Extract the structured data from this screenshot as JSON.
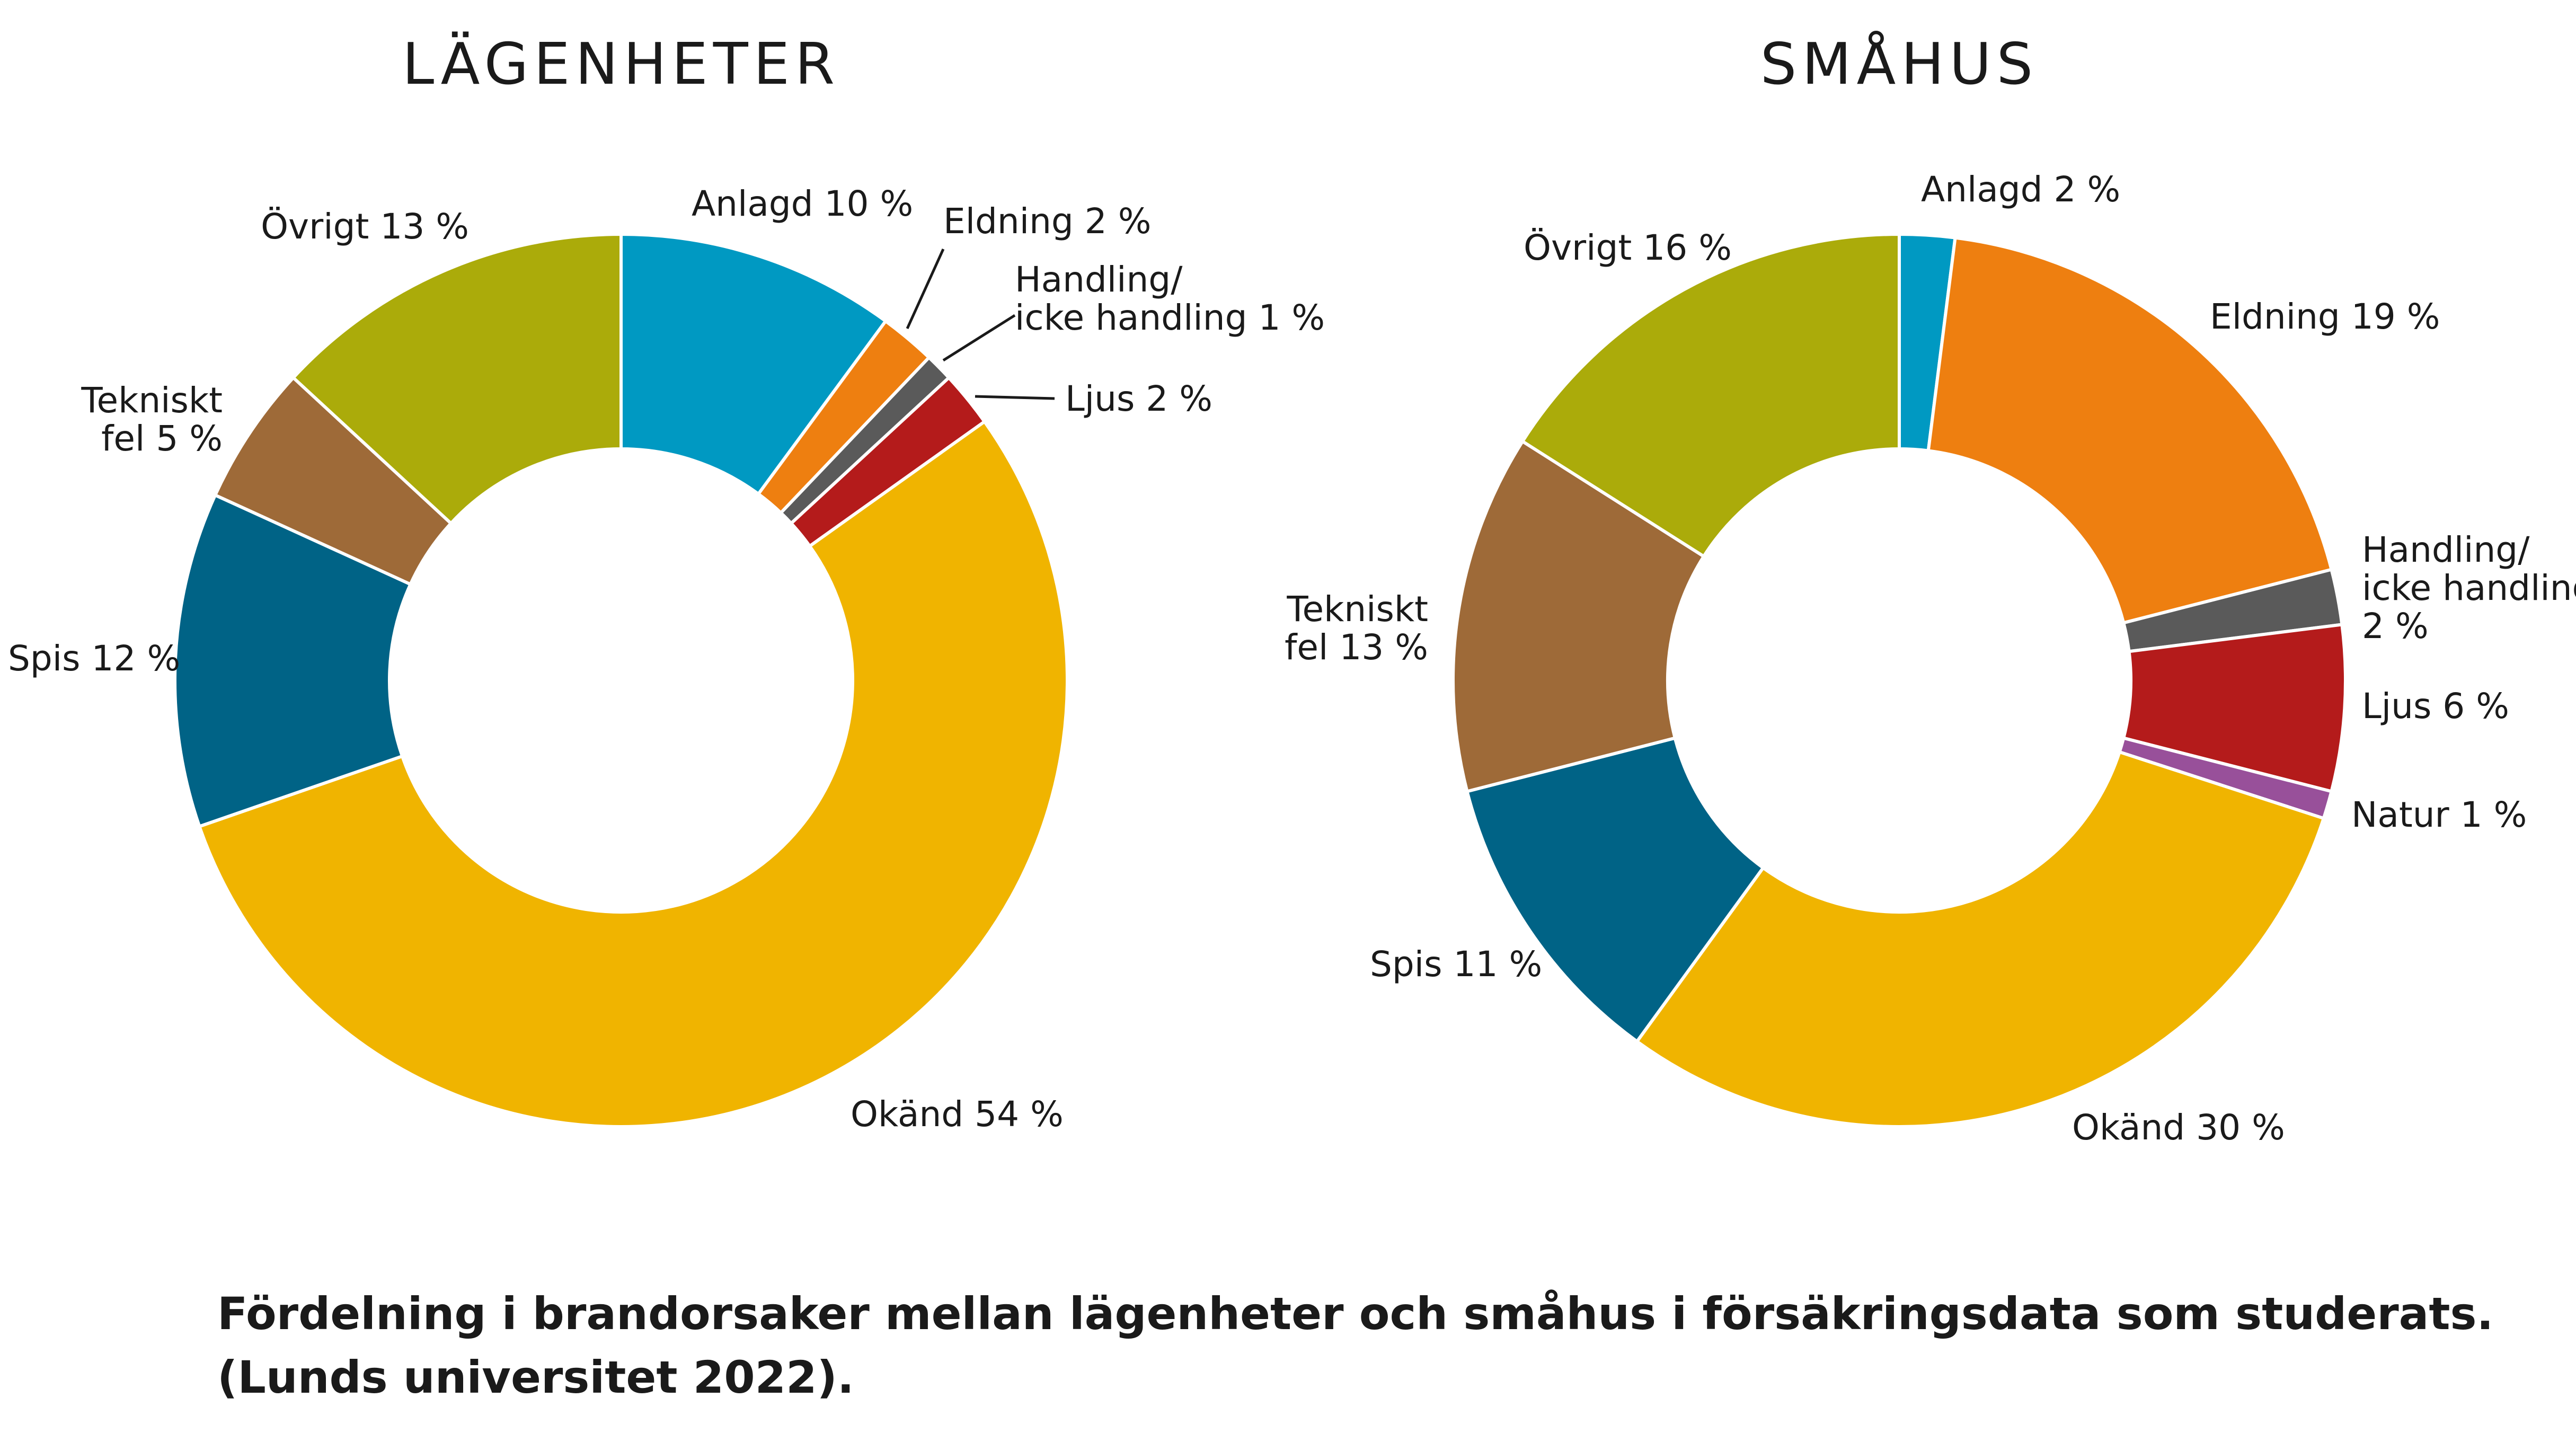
{
  "chart_data": [
    {
      "type": "pie",
      "style": "donut",
      "title": "LÄGENHETER",
      "slices": [
        {
          "name": "Anlagd",
          "value": 10,
          "label": "Anlagd 10 %",
          "color": "#0099C2"
        },
        {
          "name": "Eldning",
          "value": 2,
          "label": "Eldning 2 %",
          "color": "#EE7F10"
        },
        {
          "name": "Handling/icke handling",
          "value": 1,
          "label": [
            "Handling/",
            "icke handling 1 %"
          ],
          "color": "#5A5A5A"
        },
        {
          "name": "Ljus",
          "value": 2,
          "label": "Ljus 2 %",
          "color": "#B41B1B"
        },
        {
          "name": "Okänd",
          "value": 54,
          "label": "Okänd 54 %",
          "color": "#F0B400"
        },
        {
          "name": "Spis",
          "value": 12,
          "label": "Spis 12 %",
          "color": "#006386"
        },
        {
          "name": "Tekniskt fel",
          "value": 5,
          "label": [
            "Tekniskt",
            "fel 5 %"
          ],
          "color": "#9E6A38"
        },
        {
          "name": "Övrigt",
          "value": 13,
          "label": "Övrigt 13 %",
          "color": "#ABAB0A"
        }
      ]
    },
    {
      "type": "pie",
      "style": "donut",
      "title": "SMÅHUS",
      "slices": [
        {
          "name": "Anlagd",
          "value": 2,
          "label": "Anlagd 2 %",
          "color": "#0099C2"
        },
        {
          "name": "Eldning",
          "value": 19,
          "label": "Eldning 19 %",
          "color": "#EE7F10"
        },
        {
          "name": "Handling/icke handling",
          "value": 2,
          "label": [
            "Handling/",
            "icke handling",
            "2 %"
          ],
          "color": "#5A5A5A"
        },
        {
          "name": "Ljus",
          "value": 6,
          "label": "Ljus 6 %",
          "color": "#B41B1B"
        },
        {
          "name": "Natur",
          "value": 1,
          "label": "Natur 1 %",
          "color": "#98509A"
        },
        {
          "name": "Okänd",
          "value": 30,
          "label": "Okänd 30 %",
          "color": "#F0B400"
        },
        {
          "name": "Spis",
          "value": 11,
          "label": "Spis 11 %",
          "color": "#006386"
        },
        {
          "name": "Tekniskt fel",
          "value": 13,
          "label": [
            "Tekniskt",
            "fel 13 %"
          ],
          "color": "#9E6A38"
        },
        {
          "name": "Övrigt",
          "value": 16,
          "label": "Övrigt 16 %",
          "color": "#ABAB0A"
        }
      ]
    }
  ],
  "caption": {
    "line1": "Fördelning i brandorsaker mellan lägenheter och småhus i försäkringsdata som studerats.",
    "line2": "(Lunds universitet 2022)."
  }
}
